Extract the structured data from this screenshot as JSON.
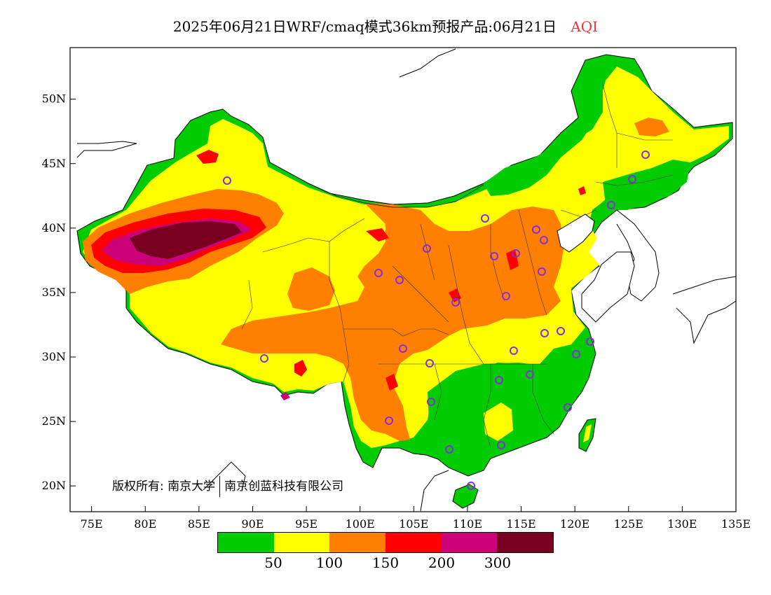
{
  "title": {
    "main": "2025年06月21日WRF/cmaq模式36km预报产品:06月21日",
    "variable": "AQI"
  },
  "map": {
    "lat_labels": [
      "50N",
      "45N",
      "40N",
      "35N",
      "30N",
      "25N",
      "20N"
    ],
    "lon_labels": [
      "75E",
      "80E",
      "85E",
      "90E",
      "95E",
      "100E",
      "105E",
      "110E",
      "115E",
      "120E",
      "125E",
      "130E",
      "135E"
    ]
  },
  "copyright": {
    "prefix": "版权所有:",
    "org1": "南京大学",
    "org2": "南京创蓝科技有限公司"
  },
  "legend": {
    "colors": [
      "#00cc00",
      "#ffff00",
      "#ff8000",
      "#ff0000",
      "#cc0077",
      "#7a0022"
    ],
    "breaks": [
      "50",
      "100",
      "150",
      "200",
      "300"
    ]
  },
  "colors": {
    "coast": "#000000",
    "station_marker": "#8a2be2"
  }
}
